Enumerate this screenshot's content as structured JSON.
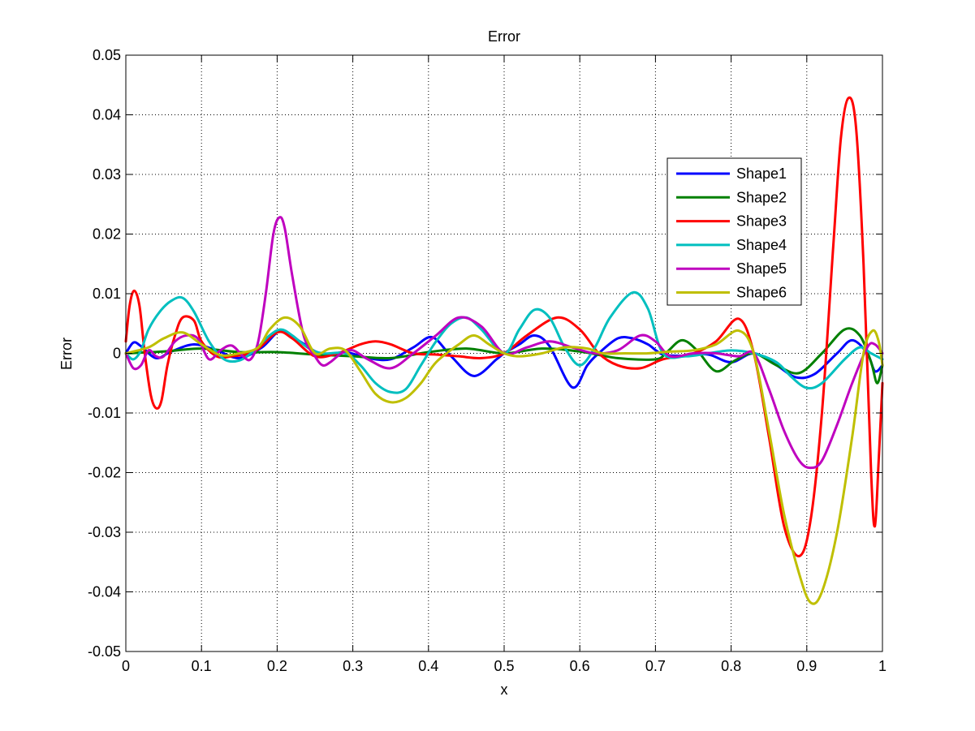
{
  "chart_data": {
    "type": "line",
    "title": "Error",
    "xlabel": "x",
    "ylabel": "Error",
    "xlim": [
      0,
      1
    ],
    "ylim": [
      -0.05,
      0.05
    ],
    "xticks": [
      "0",
      "0.1",
      "0.2",
      "0.3",
      "0.4",
      "0.5",
      "0.6",
      "0.7",
      "0.8",
      "0.9",
      "1"
    ],
    "yticks": [
      "-0.05",
      "-0.04",
      "-0.03",
      "-0.02",
      "-0.01",
      "0",
      "0.01",
      "0.02",
      "0.03",
      "0.04",
      "0.05"
    ],
    "grid": true,
    "legend_position": "right",
    "series": [
      {
        "name": "Shape1",
        "color": "#0000ff",
        "x": [
          0,
          0.01,
          0.02,
          0.04,
          0.06,
          0.09,
          0.12,
          0.15,
          0.18,
          0.205,
          0.23,
          0.26,
          0.29,
          0.32,
          0.35,
          0.38,
          0.405,
          0.43,
          0.46,
          0.49,
          0.5,
          0.52,
          0.54,
          0.56,
          0.59,
          0.61,
          0.625,
          0.65,
          0.67,
          0.69,
          0.71,
          0.74,
          0.77,
          0.8,
          0.83,
          0.86,
          0.885,
          0.91,
          0.94,
          0.96,
          0.98,
          0.99,
          1.0
        ],
        "y": [
          0.0,
          0.0018,
          0.0012,
          -0.0008,
          0.0003,
          0.0015,
          0.0005,
          -0.0008,
          0.001,
          0.0038,
          0.002,
          -0.0002,
          0.0002,
          -0.0008,
          -0.001,
          0.001,
          0.0027,
          -0.0005,
          -0.0038,
          -0.001,
          0.0,
          0.0015,
          0.003,
          0.0012,
          -0.0057,
          -0.002,
          0.0,
          0.0025,
          0.0025,
          0.0015,
          -0.0002,
          -0.0004,
          -0.0002,
          -0.0015,
          0.0,
          -0.002,
          -0.004,
          -0.0035,
          0.0,
          0.0022,
          0.0,
          -0.003,
          -0.002
        ]
      },
      {
        "name": "Shape2",
        "color": "#008000",
        "x": [
          0,
          0.05,
          0.1,
          0.15,
          0.2,
          0.25,
          0.3,
          0.35,
          0.4,
          0.45,
          0.5,
          0.55,
          0.6,
          0.65,
          0.7,
          0.715,
          0.735,
          0.755,
          0.78,
          0.805,
          0.83,
          0.86,
          0.89,
          0.92,
          0.95,
          0.97,
          0.985,
          0.993,
          1.0
        ],
        "y": [
          0.0,
          0.0003,
          0.0008,
          0.0002,
          0.0002,
          -0.0002,
          -0.0005,
          -0.0008,
          0.0002,
          0.0008,
          0.0,
          0.0008,
          0.0003,
          -0.0008,
          -0.001,
          0.0002,
          0.0022,
          0.0005,
          -0.003,
          -0.0012,
          0.0,
          -0.002,
          -0.0033,
          0.0,
          0.004,
          0.003,
          -0.0015,
          -0.005,
          -0.002
        ]
      },
      {
        "name": "Shape3",
        "color": "#ff0000",
        "x": [
          0,
          0.005,
          0.011,
          0.018,
          0.025,
          0.033,
          0.04,
          0.047,
          0.055,
          0.065,
          0.075,
          0.09,
          0.1,
          0.12,
          0.14,
          0.17,
          0.2,
          0.22,
          0.25,
          0.28,
          0.31,
          0.33,
          0.35,
          0.38,
          0.41,
          0.44,
          0.47,
          0.5,
          0.53,
          0.57,
          0.6,
          0.625,
          0.65,
          0.68,
          0.71,
          0.75,
          0.78,
          0.81,
          0.83,
          0.85,
          0.87,
          0.89,
          0.905,
          0.92,
          0.935,
          0.945,
          0.955,
          0.965,
          0.975,
          0.985,
          0.99,
          0.995,
          1.0
        ],
        "y": [
          0.002,
          0.008,
          0.0105,
          0.008,
          0.0,
          -0.007,
          -0.0092,
          -0.008,
          -0.002,
          0.003,
          0.006,
          0.0055,
          0.002,
          -0.0005,
          -0.0005,
          0.0003,
          0.0035,
          0.0025,
          -0.0005,
          0.0,
          0.0015,
          0.002,
          0.0015,
          0.0,
          -0.0002,
          -0.0005,
          -0.0008,
          0.0,
          0.003,
          0.006,
          0.004,
          0.0,
          -0.002,
          -0.0025,
          -0.001,
          0.0,
          0.002,
          0.0058,
          0.0,
          -0.014,
          -0.029,
          -0.034,
          -0.028,
          -0.01,
          0.018,
          0.036,
          0.0428,
          0.038,
          0.015,
          -0.02,
          -0.029,
          -0.018,
          -0.005
        ]
      },
      {
        "name": "Shape4",
        "color": "#00bfbf",
        "x": [
          0,
          0.01,
          0.02,
          0.03,
          0.045,
          0.06,
          0.075,
          0.09,
          0.11,
          0.13,
          0.15,
          0.17,
          0.19,
          0.205,
          0.22,
          0.24,
          0.26,
          0.29,
          0.31,
          0.33,
          0.35,
          0.37,
          0.39,
          0.41,
          0.43,
          0.45,
          0.47,
          0.5,
          0.52,
          0.54,
          0.56,
          0.58,
          0.6,
          0.62,
          0.64,
          0.67,
          0.69,
          0.71,
          0.74,
          0.77,
          0.8,
          0.83,
          0.86,
          0.88,
          0.9,
          0.92,
          0.95,
          0.97,
          0.985,
          1.0
        ],
        "y": [
          0.0,
          -0.001,
          0.0005,
          0.004,
          0.007,
          0.0088,
          0.0093,
          0.007,
          0.002,
          -0.001,
          -0.0012,
          0.0005,
          0.003,
          0.004,
          0.003,
          0.001,
          0.0,
          0.0,
          -0.002,
          -0.005,
          -0.0065,
          -0.006,
          -0.002,
          0.002,
          0.005,
          0.006,
          0.004,
          0.0,
          0.004,
          0.0073,
          0.006,
          0.001,
          -0.002,
          0.001,
          0.006,
          0.0102,
          0.0075,
          0.0,
          -0.0005,
          0.0,
          0.0005,
          0.0,
          -0.0015,
          -0.004,
          -0.0058,
          -0.005,
          -0.001,
          0.001,
          0.0,
          -0.001
        ]
      },
      {
        "name": "Shape5",
        "color": "#bf00bf",
        "x": [
          0,
          0.01,
          0.02,
          0.03,
          0.04,
          0.05,
          0.065,
          0.08,
          0.095,
          0.11,
          0.125,
          0.14,
          0.155,
          0.165,
          0.175,
          0.185,
          0.195,
          0.203,
          0.21,
          0.22,
          0.235,
          0.25,
          0.26,
          0.27,
          0.285,
          0.3,
          0.32,
          0.35,
          0.38,
          0.41,
          0.44,
          0.47,
          0.5,
          0.53,
          0.56,
          0.59,
          0.62,
          0.65,
          0.68,
          0.7,
          0.72,
          0.75,
          0.78,
          0.81,
          0.83,
          0.85,
          0.87,
          0.89,
          0.905,
          0.92,
          0.94,
          0.96,
          0.98,
          0.99,
          1.0
        ],
        "y": [
          0.0,
          -0.0025,
          -0.002,
          0.0005,
          -0.0005,
          -0.0005,
          0.002,
          0.003,
          0.0025,
          -0.001,
          0.0005,
          0.0013,
          -0.0005,
          -0.001,
          0.002,
          0.01,
          0.02,
          0.0228,
          0.021,
          0.013,
          0.003,
          -0.0005,
          -0.002,
          -0.0015,
          0.0,
          0.0005,
          -0.001,
          -0.0025,
          0.0,
          0.003,
          0.006,
          0.0045,
          0.0,
          0.001,
          0.002,
          0.001,
          0.0,
          0.0005,
          0.003,
          0.002,
          -0.0005,
          0.0,
          0.0,
          -0.0005,
          0.0,
          -0.006,
          -0.013,
          -0.018,
          -0.0192,
          -0.018,
          -0.012,
          -0.005,
          0.001,
          0.0015,
          0.0
        ]
      },
      {
        "name": "Shape6",
        "color": "#bfbf00",
        "x": [
          0,
          0.03,
          0.05,
          0.075,
          0.1,
          0.125,
          0.15,
          0.175,
          0.19,
          0.21,
          0.23,
          0.25,
          0.27,
          0.29,
          0.31,
          0.33,
          0.35,
          0.37,
          0.39,
          0.41,
          0.44,
          0.46,
          0.48,
          0.5,
          0.52,
          0.55,
          0.58,
          0.61,
          0.63,
          0.66,
          0.69,
          0.72,
          0.75,
          0.78,
          0.81,
          0.83,
          0.85,
          0.87,
          0.89,
          0.905,
          0.92,
          0.94,
          0.96,
          0.975,
          0.987,
          0.995,
          1.0
        ],
        "y": [
          0.0,
          0.001,
          0.0025,
          0.0035,
          0.0015,
          -0.0003,
          0.0,
          0.001,
          0.004,
          0.006,
          0.0045,
          0.0,
          0.0008,
          0.0005,
          -0.003,
          -0.0068,
          -0.0082,
          -0.0075,
          -0.005,
          -0.0015,
          0.0015,
          0.003,
          0.0015,
          0.0,
          -0.0005,
          0.0,
          0.001,
          0.0008,
          0.0,
          0.0,
          0.0,
          0.0003,
          0.0005,
          0.0015,
          0.0038,
          0.0,
          -0.013,
          -0.027,
          -0.037,
          -0.0418,
          -0.04,
          -0.03,
          -0.014,
          0.0,
          0.0038,
          0.002,
          -0.002
        ]
      }
    ]
  }
}
